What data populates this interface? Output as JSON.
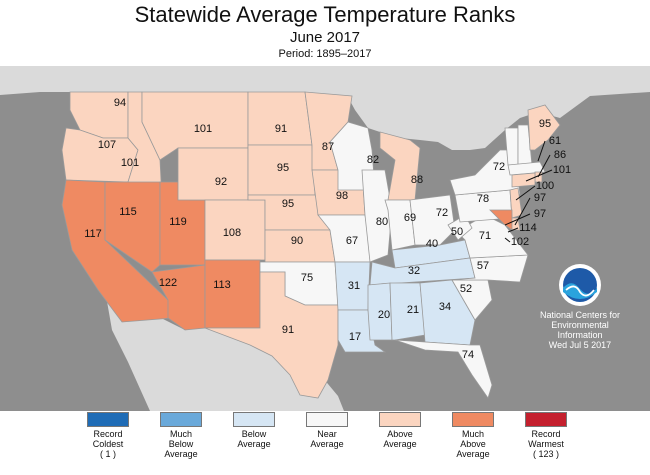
{
  "title": "Statewide Average Temperature Ranks",
  "subtitle": "June 2017",
  "period": "Period: 1895–2017",
  "colors": {
    "record_coldest": "#1f6cb6",
    "much_below": "#6aa9da",
    "below": "#d6e6f4",
    "near": "#f7f7f7",
    "above": "#fbd5c0",
    "much_above": "#ef8a62",
    "record_warmest": "#c4202e",
    "background": "#8e8e8e",
    "non_us_land": "#dadada"
  },
  "states": [
    {
      "id": "WA",
      "rank": "94",
      "cat": "above"
    },
    {
      "id": "OR",
      "rank": "107",
      "cat": "above"
    },
    {
      "id": "CA",
      "rank": "117",
      "cat": "much_above"
    },
    {
      "id": "ID",
      "rank": "101",
      "cat": "above"
    },
    {
      "id": "NV",
      "rank": "115",
      "cat": "much_above"
    },
    {
      "id": "UT",
      "rank": "119",
      "cat": "much_above"
    },
    {
      "id": "AZ",
      "rank": "122",
      "cat": "much_above"
    },
    {
      "id": "MT",
      "rank": "101",
      "cat": "above"
    },
    {
      "id": "WY",
      "rank": "92",
      "cat": "above"
    },
    {
      "id": "CO",
      "rank": "108",
      "cat": "above"
    },
    {
      "id": "NM",
      "rank": "113",
      "cat": "much_above"
    },
    {
      "id": "ND",
      "rank": "91",
      "cat": "above"
    },
    {
      "id": "SD",
      "rank": "95",
      "cat": "above"
    },
    {
      "id": "NE",
      "rank": "95",
      "cat": "above"
    },
    {
      "id": "KS",
      "rank": "90",
      "cat": "above"
    },
    {
      "id": "OK",
      "rank": "75",
      "cat": "near"
    },
    {
      "id": "TX",
      "rank": "91",
      "cat": "above"
    },
    {
      "id": "MN",
      "rank": "87",
      "cat": "above"
    },
    {
      "id": "IA",
      "rank": "98",
      "cat": "above"
    },
    {
      "id": "MO",
      "rank": "67",
      "cat": "near"
    },
    {
      "id": "AR",
      "rank": "31",
      "cat": "below"
    },
    {
      "id": "LA",
      "rank": "17",
      "cat": "below"
    },
    {
      "id": "WI",
      "rank": "82",
      "cat": "near"
    },
    {
      "id": "IL",
      "rank": "80",
      "cat": "near"
    },
    {
      "id": "MI",
      "rank": "88",
      "cat": "above"
    },
    {
      "id": "IN",
      "rank": "69",
      "cat": "near"
    },
    {
      "id": "OH",
      "rank": "72",
      "cat": "near"
    },
    {
      "id": "KY",
      "rank": "40",
      "cat": "below"
    },
    {
      "id": "TN",
      "rank": "32",
      "cat": "below"
    },
    {
      "id": "MS",
      "rank": "20",
      "cat": "below"
    },
    {
      "id": "AL",
      "rank": "21",
      "cat": "below"
    },
    {
      "id": "GA",
      "rank": "34",
      "cat": "below"
    },
    {
      "id": "FL",
      "rank": "74",
      "cat": "near"
    },
    {
      "id": "SC",
      "rank": "52",
      "cat": "near"
    },
    {
      "id": "NC",
      "rank": "57",
      "cat": "near"
    },
    {
      "id": "VA",
      "rank": "71",
      "cat": "near"
    },
    {
      "id": "WV",
      "rank": "50",
      "cat": "near"
    },
    {
      "id": "PA",
      "rank": "78",
      "cat": "near"
    },
    {
      "id": "NY",
      "rank": "72",
      "cat": "near"
    },
    {
      "id": "VT",
      "rank": "",
      "cat": "near"
    },
    {
      "id": "NH",
      "rank": "",
      "cat": "near"
    },
    {
      "id": "ME",
      "rank": "95",
      "cat": "above"
    },
    {
      "id": "MA",
      "rank": "61",
      "cat": "near"
    },
    {
      "id": "RI",
      "rank": "86",
      "cat": "above"
    },
    {
      "id": "CT",
      "rank": "101",
      "cat": "above"
    },
    {
      "id": "NJ",
      "rank": "100",
      "cat": "above"
    },
    {
      "id": "DE",
      "rank": "97",
      "cat": "above"
    },
    {
      "id": "MD",
      "rank": "114",
      "cat": "much_above"
    }
  ],
  "callouts": [
    {
      "label": "61"
    },
    {
      "label": "86"
    },
    {
      "label": "101"
    },
    {
      "label": "100"
    },
    {
      "label": "97"
    },
    {
      "label": "97"
    },
    {
      "label": "114"
    },
    {
      "label": "102"
    }
  ],
  "noaa": {
    "logo_text": "NOAA",
    "line1": "National Centers for",
    "line2": "Environmental",
    "line3": "Information",
    "date": "Wed Jul  5 2017"
  },
  "legend": [
    {
      "key": "record_coldest",
      "l1": "Record",
      "l2": "Coldest",
      "l3": "( 1 )"
    },
    {
      "key": "much_below",
      "l1": "Much",
      "l2": "Below",
      "l3": "Average"
    },
    {
      "key": "below",
      "l1": "Below",
      "l2": "Average",
      "l3": ""
    },
    {
      "key": "near",
      "l1": "Near",
      "l2": "Average",
      "l3": ""
    },
    {
      "key": "above",
      "l1": "Above",
      "l2": "Average",
      "l3": ""
    },
    {
      "key": "much_above",
      "l1": "Much",
      "l2": "Above",
      "l3": "Average"
    },
    {
      "key": "record_warmest",
      "l1": "Record",
      "l2": "Warmest",
      "l3": "( 123 )"
    }
  ]
}
